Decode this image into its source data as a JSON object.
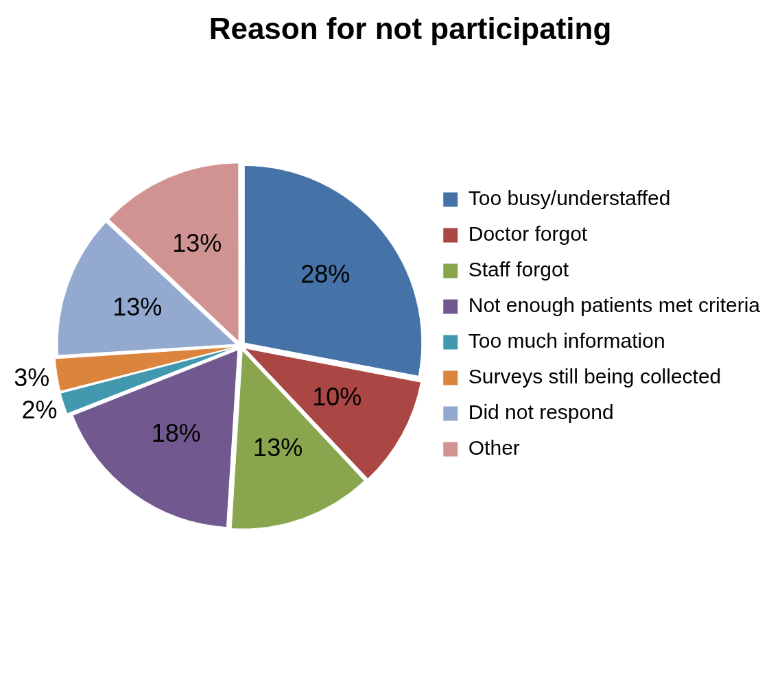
{
  "chart_data": {
    "type": "pie",
    "title": "Reason for not participating",
    "categories": [
      "Too busy/understaffed",
      "Doctor forgot",
      "Staff forgot",
      "Not enough patients met criteria",
      "Too much information",
      "Surveys still being collected",
      "Did not respond",
      "Other"
    ],
    "values": [
      28,
      10,
      13,
      18,
      2,
      3,
      13,
      13
    ],
    "colors": [
      "#4572a7",
      "#aa4643",
      "#89a54e",
      "#71588f",
      "#4198af",
      "#db843d",
      "#93a9cf",
      "#d19392"
    ],
    "value_labels": [
      "28%",
      "10%",
      "13%",
      "18%",
      "2%",
      "3%",
      "13%",
      "13%"
    ],
    "legend": "right"
  }
}
